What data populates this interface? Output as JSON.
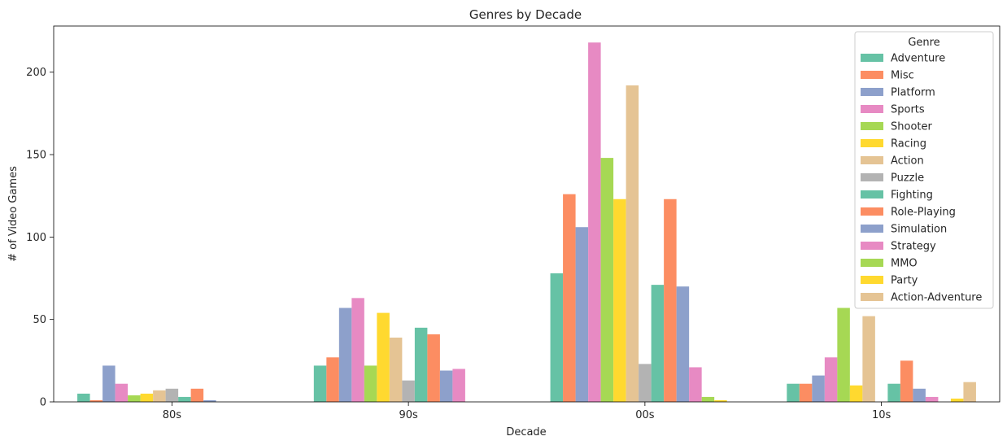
{
  "chart_data": {
    "type": "bar",
    "title": "Genres by Decade",
    "xlabel": "Decade",
    "ylabel": "# of Video Games",
    "categories": [
      "80s",
      "90s",
      "00s",
      "10s"
    ],
    "ylim": [
      0,
      228
    ],
    "yticks": [
      0,
      50,
      100,
      150,
      200
    ],
    "legend": {
      "title": "Genre",
      "placement": "top-right"
    },
    "series": [
      {
        "name": "Adventure",
        "color": "#66c2a5",
        "values": [
          5,
          22,
          78,
          11
        ]
      },
      {
        "name": "Misc",
        "color": "#fc8d62",
        "values": [
          1,
          27,
          126,
          11
        ]
      },
      {
        "name": "Platform",
        "color": "#8da0cb",
        "values": [
          22,
          57,
          106,
          16
        ]
      },
      {
        "name": "Sports",
        "color": "#e78ac3",
        "values": [
          11,
          63,
          218,
          27
        ]
      },
      {
        "name": "Shooter",
        "color": "#a6d854",
        "values": [
          4,
          22,
          148,
          57
        ]
      },
      {
        "name": "Racing",
        "color": "#ffd92f",
        "values": [
          5,
          54,
          123,
          10
        ]
      },
      {
        "name": "Action",
        "color": "#e5c494",
        "values": [
          7,
          39,
          192,
          52
        ]
      },
      {
        "name": "Puzzle",
        "color": "#b3b3b3",
        "values": [
          8,
          13,
          23,
          0
        ]
      },
      {
        "name": "Fighting",
        "color": "#66c2a5",
        "values": [
          3,
          45,
          71,
          11
        ]
      },
      {
        "name": "Role-Playing",
        "color": "#fc8d62",
        "values": [
          8,
          41,
          123,
          25
        ]
      },
      {
        "name": "Simulation",
        "color": "#8da0cb",
        "values": [
          1,
          19,
          70,
          8
        ]
      },
      {
        "name": "Strategy",
        "color": "#e78ac3",
        "values": [
          0,
          20,
          21,
          3
        ]
      },
      {
        "name": "MMO",
        "color": "#a6d854",
        "values": [
          0,
          0,
          3,
          0
        ]
      },
      {
        "name": "Party",
        "color": "#ffd92f",
        "values": [
          0,
          0,
          1,
          2
        ]
      },
      {
        "name": "Action-Adventure",
        "color": "#e5c494",
        "values": [
          0,
          0,
          0,
          12
        ]
      }
    ]
  }
}
